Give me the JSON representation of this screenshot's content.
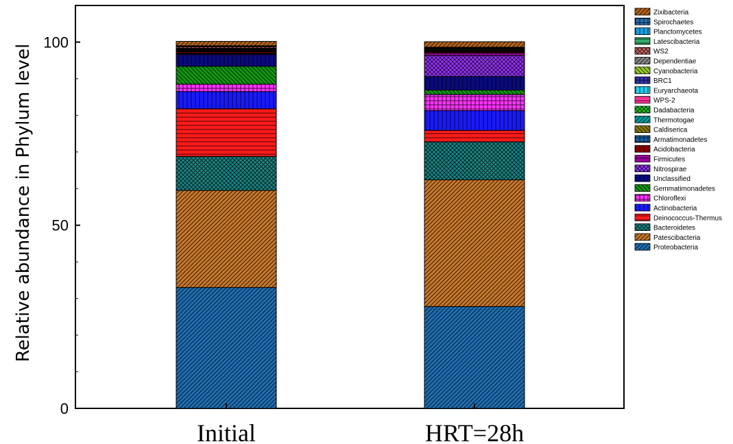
{
  "chart_data": {
    "type": "bar",
    "stacked": true,
    "title": "",
    "xlabel": "",
    "ylabel": "Relative abundance in Phylum level",
    "ylim": [
      0,
      110
    ],
    "yticks": [
      0,
      50,
      100
    ],
    "grid": false,
    "legend_position": "right",
    "categories": [
      "Initial",
      "HRT=28h"
    ],
    "series": [
      {
        "name": "Proteobacteria",
        "color": "#1f6fb4",
        "pattern": "diag",
        "values": [
          33.0,
          27.8
        ]
      },
      {
        "name": "Patescibacteria",
        "color": "#c8782a",
        "pattern": "diag",
        "values": [
          26.5,
          34.6
        ]
      },
      {
        "name": "Bacteroidetes",
        "color": "#1a8a8a",
        "pattern": "cross",
        "values": [
          9.3,
          10.4
        ]
      },
      {
        "name": "Deinococcus-Thermus",
        "color": "#ff1a1a",
        "pattern": "hlines",
        "values": [
          13.0,
          3.1
        ]
      },
      {
        "name": "Actinobacteria",
        "color": "#1a1aff",
        "pattern": "vlines",
        "values": [
          4.7,
          5.4
        ]
      },
      {
        "name": "Chloroflexi",
        "color": "#ff33ff",
        "pattern": "grid",
        "values": [
          2.0,
          4.4
        ]
      },
      {
        "name": "Gemmatimonadetes",
        "color": "#119911",
        "pattern": "diag2",
        "values": [
          4.9,
          1.2
        ]
      },
      {
        "name": "Unclassified",
        "color": "#0a0a80",
        "pattern": "vlines",
        "values": [
          3.2,
          3.7
        ]
      },
      {
        "name": "Nitrospirae",
        "color": "#9933ff",
        "pattern": "cross",
        "values": [
          0.2,
          5.8
        ]
      },
      {
        "name": "Firmicutes",
        "color": "#990099",
        "pattern": "hlines",
        "values": [
          0.2,
          0.6
        ]
      },
      {
        "name": "Acidobacteria",
        "color": "#880000",
        "pattern": "vlines",
        "values": [
          0.4,
          0.3
        ]
      },
      {
        "name": "Armatimonadetes",
        "color": "#1a5e9e",
        "pattern": "grid",
        "values": [
          0.1,
          0.1
        ]
      },
      {
        "name": "Caldiserica",
        "color": "#8a7a00",
        "pattern": "diag2",
        "values": [
          0.1,
          0.1
        ]
      },
      {
        "name": "Thermotogae",
        "color": "#00a0a0",
        "pattern": "diag",
        "values": [
          0.1,
          0.1
        ]
      },
      {
        "name": "Dadabacteria",
        "color": "#22cc22",
        "pattern": "cross",
        "values": [
          0.1,
          0.1
        ]
      },
      {
        "name": "WPS-2",
        "color": "#ff3399",
        "pattern": "hlines",
        "values": [
          0.1,
          0.1
        ]
      },
      {
        "name": "Euryarchaeota",
        "color": "#22ccee",
        "pattern": "vlines",
        "values": [
          0.1,
          0.1
        ]
      },
      {
        "name": "BRC1",
        "color": "#3333aa",
        "pattern": "grid",
        "values": [
          0.1,
          0.1
        ]
      },
      {
        "name": "Cyanobacteria",
        "color": "#99cc22",
        "pattern": "diag2",
        "values": [
          0.1,
          0.1
        ]
      },
      {
        "name": "Dependentiae",
        "color": "#888888",
        "pattern": "diag",
        "values": [
          0.1,
          0.1
        ]
      },
      {
        "name": "WS2",
        "color": "#cc6666",
        "pattern": "cross",
        "values": [
          0.4,
          0.1
        ]
      },
      {
        "name": "Latescibacteria",
        "color": "#33aa66",
        "pattern": "hlines",
        "values": [
          0.1,
          0.1
        ]
      },
      {
        "name": "Planctomycetes",
        "color": "#1a9fdf",
        "pattern": "vlines",
        "values": [
          0.1,
          0.1
        ]
      },
      {
        "name": "Spirochaetes",
        "color": "#2a6faf",
        "pattern": "grid",
        "values": [
          0.1,
          0.1
        ]
      },
      {
        "name": "Zixibacteria",
        "color": "#b5651d",
        "pattern": "diag",
        "values": [
          1.2,
          1.5
        ]
      }
    ]
  }
}
